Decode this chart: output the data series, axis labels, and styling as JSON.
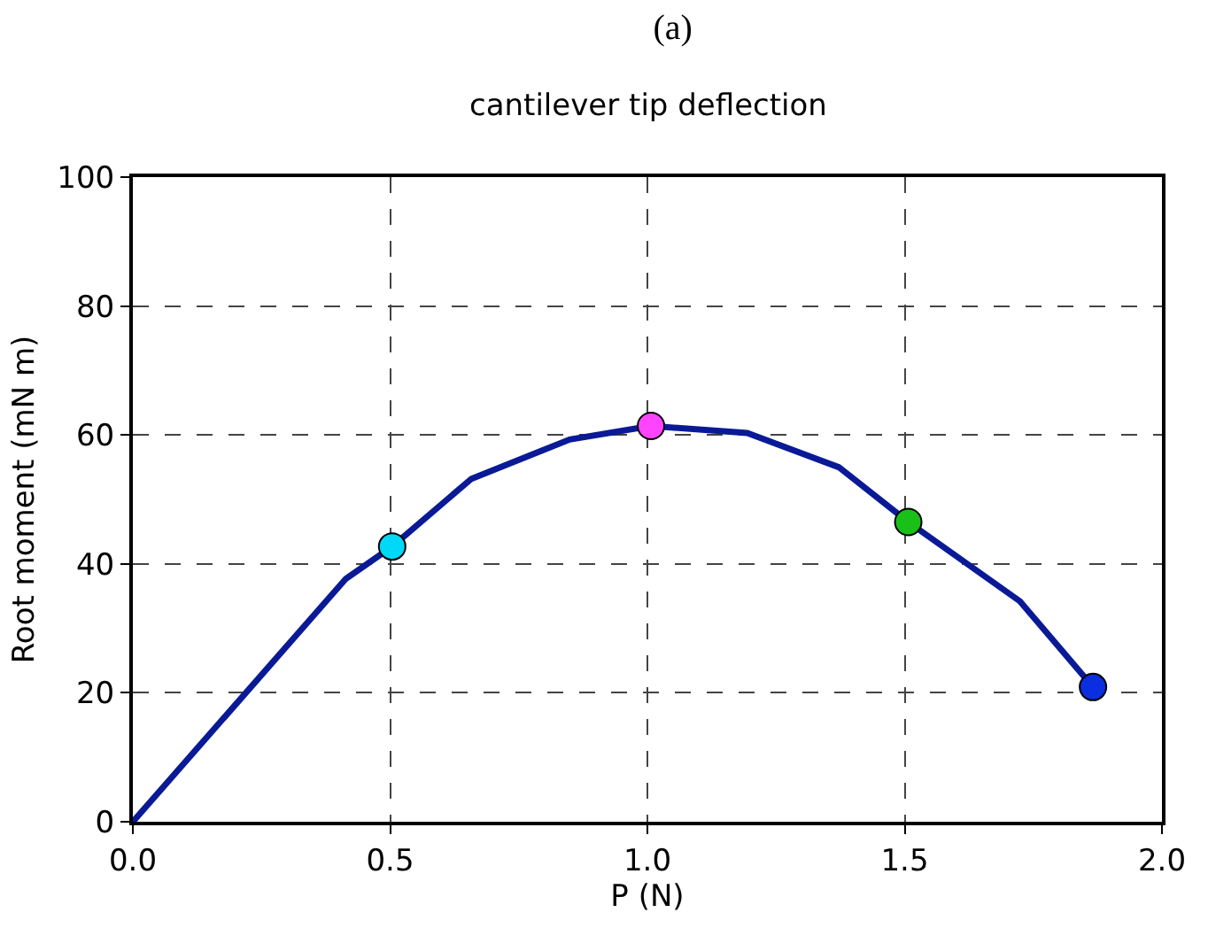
{
  "chart_data": {
    "type": "line",
    "title": "(a)",
    "subtitle": "cantilever tip deflection",
    "xlabel": "P (N)",
    "ylabel": "Root moment (mN m)",
    "xlim": [
      0,
      2
    ],
    "xticks": [
      {
        "value": 0,
        "label": "0.0"
      },
      0.5,
      {
        "value": 1,
        "label": "1.0"
      },
      1.5,
      {
        "value": 2,
        "label": "2.0"
      }
    ],
    "ylim": [
      0,
      100
    ],
    "yticks": [
      0,
      20,
      40,
      60,
      80,
      100
    ],
    "grid": true,
    "series": [
      {
        "color": "#0a1a96",
        "marker": "none",
        "x": [
          0,
          0.414,
          0.504,
          0.658,
          0.849,
          1.007,
          1.194,
          1.372,
          1.507,
          1.724,
          1.866
        ],
        "values": [
          0,
          37.7,
          42.7,
          53.2,
          59.3,
          61.4,
          60.3,
          55.0,
          46.5,
          34.2,
          20.9
        ]
      },
      {
        "type": "scatter",
        "marker": "circle",
        "colors": [
          "#00d8f8",
          "#ff44ff",
          "#18c018",
          "#0a2ee0"
        ],
        "x": [
          0.504,
          1.007,
          1.507,
          1.866
        ],
        "values": [
          42.7,
          61.4,
          46.5,
          20.9
        ]
      }
    ]
  }
}
